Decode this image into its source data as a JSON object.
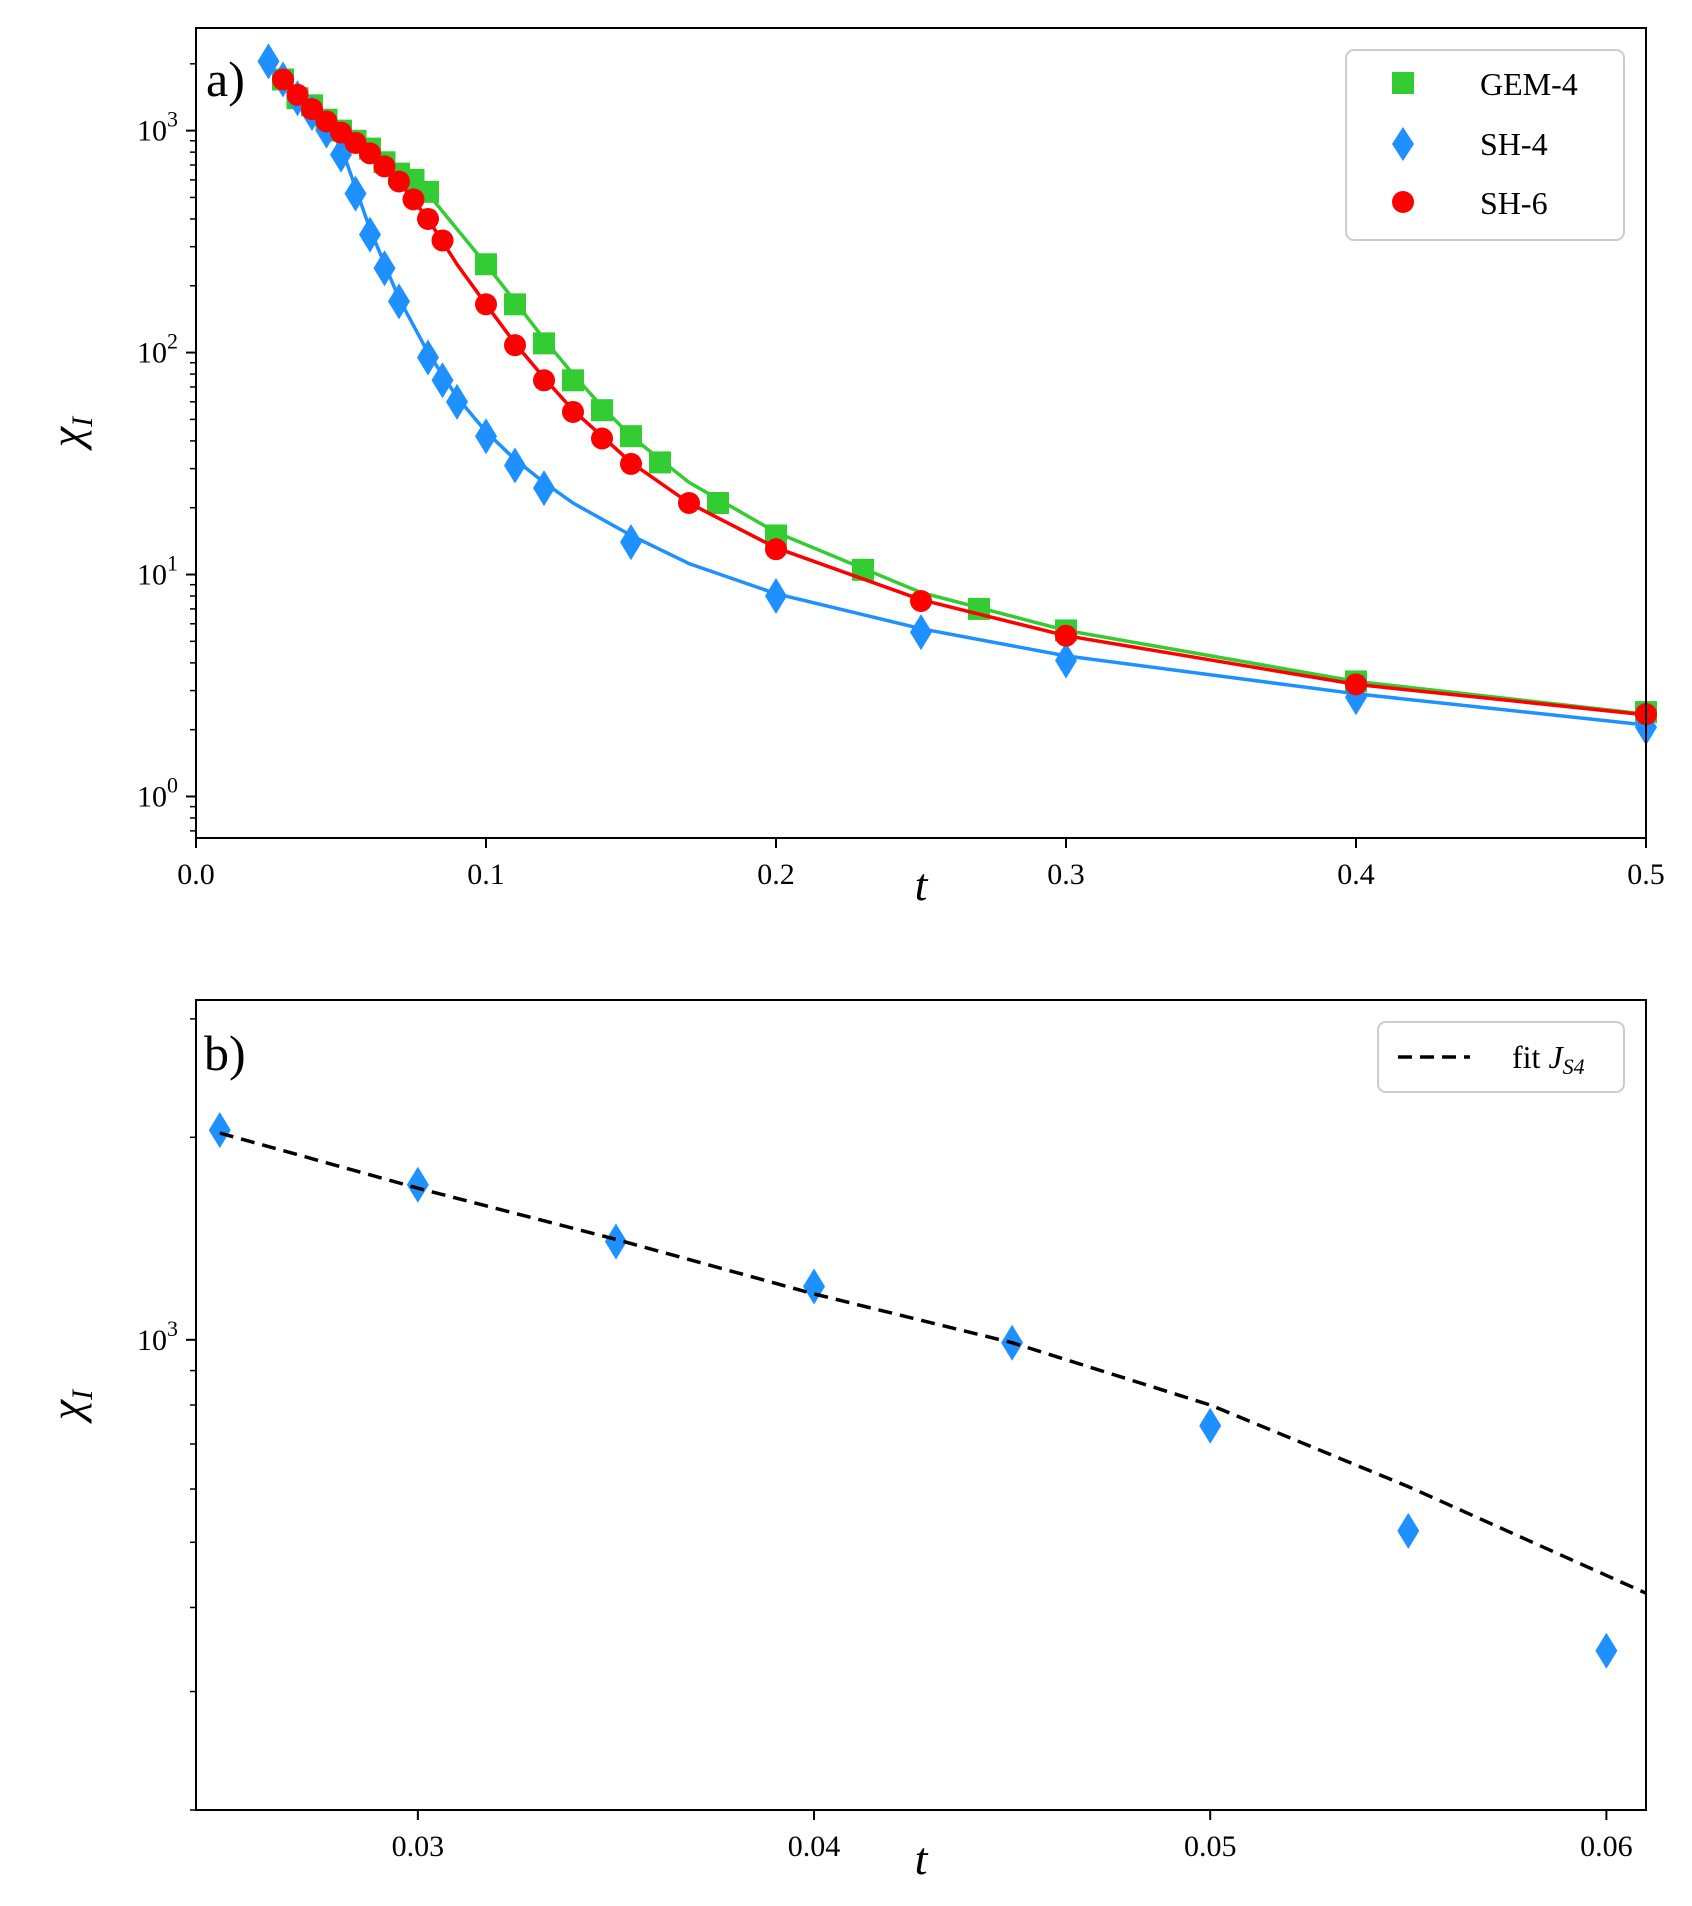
{
  "colors": {
    "gem4": "#33cc33",
    "sh4": "#1e90ff",
    "sh6": "#ff0000",
    "fit": "#000000"
  },
  "chart_data": [
    {
      "panel": "a)",
      "type": "scatter",
      "xlabel": "t",
      "ylabel": "χ",
      "ylabel_sub": "I",
      "xscale": "linear",
      "yscale": "log",
      "xlim": [
        0.0,
        0.5
      ],
      "ylim": [
        0.65,
        2900
      ],
      "xticks": [
        "0.0",
        "0.1",
        "0.2",
        "0.3",
        "0.4",
        "0.5"
      ],
      "yticks": [
        {
          "value": 1,
          "base": "10",
          "exp": "0"
        },
        {
          "value": 10,
          "base": "10",
          "exp": "1"
        },
        {
          "value": 100,
          "base": "10",
          "exp": "2"
        },
        {
          "value": 1000,
          "base": "10",
          "exp": "3"
        }
      ],
      "legend_position": "top-right",
      "series": [
        {
          "name": "GEM-4",
          "marker": "square",
          "color": "#33cc33",
          "x": [
            0.03,
            0.035,
            0.04,
            0.045,
            0.05,
            0.055,
            0.06,
            0.065,
            0.07,
            0.075,
            0.08,
            0.1,
            0.11,
            0.12,
            0.13,
            0.14,
            0.15,
            0.16,
            0.18,
            0.2,
            0.23,
            0.27,
            0.3,
            0.4,
            0.5
          ],
          "y": [
            1700,
            1400,
            1300,
            1120,
            1000,
            900,
            830,
            720,
            640,
            600,
            530,
            250,
            165,
            110,
            75,
            55,
            42,
            32,
            21,
            15,
            10.5,
            7,
            5.6,
            3.3,
            2.4
          ],
          "curve_x": [
            0.03,
            0.04,
            0.05,
            0.06,
            0.07,
            0.08,
            0.09,
            0.1,
            0.11,
            0.12,
            0.13,
            0.14,
            0.15,
            0.17,
            0.2,
            0.25,
            0.3,
            0.4,
            0.5
          ],
          "curve_y": [
            1700,
            1300,
            1000,
            830,
            660,
            520,
            360,
            250,
            170,
            115,
            80,
            57,
            42,
            26,
            15.5,
            8.3,
            5.6,
            3.3,
            2.35
          ]
        },
        {
          "name": "SH-4",
          "marker": "diamond",
          "color": "#1e90ff",
          "x": [
            0.025,
            0.03,
            0.035,
            0.04,
            0.045,
            0.05,
            0.055,
            0.06,
            0.065,
            0.07,
            0.08,
            0.085,
            0.09,
            0.1,
            0.11,
            0.12,
            0.15,
            0.2,
            0.25,
            0.3,
            0.4,
            0.5
          ],
          "y": [
            2050,
            1700,
            1400,
            1200,
            1000,
            780,
            520,
            340,
            240,
            170,
            95,
            75,
            60,
            42,
            31,
            24.5,
            14,
            8,
            5.5,
            4.1,
            2.8,
            2.05
          ],
          "curve_x": [
            0.025,
            0.03,
            0.04,
            0.05,
            0.06,
            0.07,
            0.08,
            0.09,
            0.1,
            0.11,
            0.12,
            0.13,
            0.15,
            0.17,
            0.2,
            0.25,
            0.3,
            0.4,
            0.5
          ],
          "curve_y": [
            2000,
            1680,
            1230,
            850,
            360,
            175,
            100,
            63,
            44,
            33,
            26,
            21,
            15,
            11.2,
            8.2,
            5.7,
            4.3,
            2.9,
            2.1
          ]
        },
        {
          "name": "SH-6",
          "marker": "circle",
          "color": "#ff0000",
          "x": [
            0.03,
            0.035,
            0.04,
            0.045,
            0.05,
            0.055,
            0.06,
            0.065,
            0.07,
            0.075,
            0.08,
            0.085,
            0.1,
            0.11,
            0.12,
            0.13,
            0.14,
            0.15,
            0.17,
            0.2,
            0.25,
            0.3,
            0.4,
            0.5
          ],
          "y": [
            1700,
            1450,
            1250,
            1100,
            980,
            880,
            790,
            690,
            590,
            490,
            400,
            320,
            165,
            108,
            75,
            54,
            41,
            31.5,
            21,
            13,
            7.6,
            5.3,
            3.2,
            2.35
          ],
          "curve_x": [
            0.03,
            0.04,
            0.05,
            0.06,
            0.07,
            0.08,
            0.09,
            0.1,
            0.11,
            0.12,
            0.13,
            0.14,
            0.15,
            0.17,
            0.2,
            0.25,
            0.3,
            0.4,
            0.5
          ],
          "curve_y": [
            1700,
            1250,
            980,
            790,
            590,
            400,
            250,
            165,
            110,
            77,
            55,
            42,
            32,
            21,
            13.2,
            7.7,
            5.3,
            3.2,
            2.33
          ]
        }
      ]
    },
    {
      "panel": "b)",
      "type": "scatter",
      "xlabel": "t",
      "ylabel": "χ",
      "ylabel_sub": "I",
      "xscale": "linear",
      "yscale": "log",
      "xlim": [
        0.0244,
        0.061
      ],
      "ylim": [
        200,
        3200
      ],
      "xticks": [
        "0.03",
        "0.04",
        "0.05",
        "0.06"
      ],
      "yticks": [
        {
          "value": 1000,
          "base": "10",
          "exp": "3"
        }
      ],
      "legend_position": "top-right",
      "series": [
        {
          "name": "SH-4",
          "marker": "diamond",
          "color": "#1e90ff",
          "in_legend": false,
          "x": [
            0.025,
            0.03,
            0.035,
            0.04,
            0.045,
            0.05,
            0.055,
            0.06
          ],
          "y": [
            2050,
            1700,
            1400,
            1200,
            990,
            745,
            520,
            345
          ]
        },
        {
          "name": "fit",
          "name_sub": "S4",
          "name_italic": "J",
          "marker": "none",
          "line": "dashed",
          "color": "#000000",
          "in_legend": true,
          "x": [
            0.025,
            0.03,
            0.035,
            0.04,
            0.045,
            0.05,
            0.055,
            0.061
          ],
          "y": [
            2030,
            1680,
            1410,
            1170,
            990,
            800,
            605,
            420
          ]
        }
      ]
    }
  ]
}
